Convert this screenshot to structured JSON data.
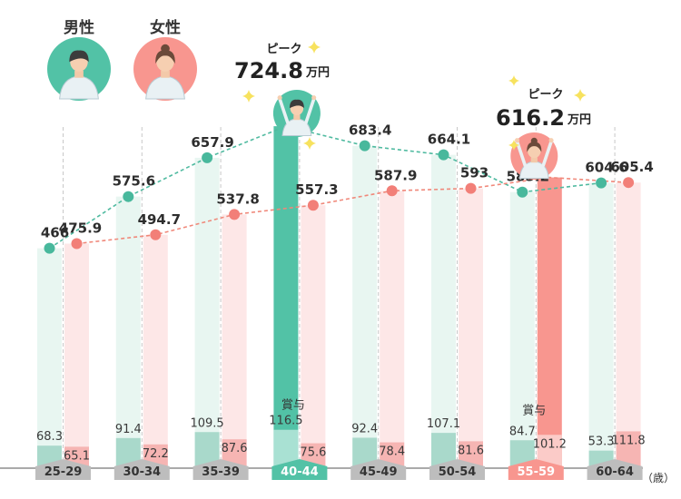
{
  "chart_data": {
    "type": "bar",
    "categories": [
      "25-29",
      "30-34",
      "35-39",
      "40-44",
      "45-49",
      "50-54",
      "55-59",
      "60-64"
    ],
    "series": [
      {
        "name": "男性",
        "values": [
          466,
          575.6,
          657.9,
          724.8,
          683.4,
          664.1,
          585.2,
          604.6
        ],
        "bonus": [
          68.3,
          91.4,
          109.5,
          116.5,
          92.4,
          107.1,
          84.7,
          53.3
        ]
      },
      {
        "name": "女性",
        "values": [
          475.9,
          494.7,
          537.8,
          557.3,
          587.9,
          593,
          616.2,
          605.4
        ],
        "bonus": [
          65.1,
          72.2,
          87.6,
          75.6,
          78.4,
          81.6,
          101.2,
          111.8
        ]
      }
    ],
    "value_labels_male": [
      "466",
      "575.6",
      "657.9",
      "",
      "683.4",
      "664.1",
      "585.2",
      "604.6"
    ],
    "value_labels_female": [
      "475.9",
      "494.7",
      "537.8",
      "557.3",
      "587.9",
      "593",
      "",
      "605.4"
    ],
    "bonus_labels_male": [
      "68.3",
      "91.4",
      "109.5",
      "116.5",
      "92.4",
      "107.1",
      "84.7",
      "53.3"
    ],
    "bonus_labels_female": [
      "65.1",
      "72.2",
      "87.6",
      "75.6",
      "78.4",
      "81.6",
      "101.2",
      "111.8"
    ],
    "peaks": [
      {
        "series": "男性",
        "category": "40-44",
        "word": "ピーク",
        "value": "724.8",
        "unit": "万円"
      },
      {
        "series": "女性",
        "category": "55-59",
        "word": "ピーク",
        "value": "616.2",
        "unit": "万円"
      }
    ],
    "bonus_word": "賞与",
    "x_unit": "（歳）",
    "legend": {
      "male": "男性",
      "female": "女性",
      "position": "top-left"
    },
    "ylim": [
      0,
      800
    ],
    "grid": "dashed vertical lines at categories",
    "highlight": {
      "male": "40-44",
      "female": "55-59"
    }
  },
  "colors": {
    "male_line": "#4fbaa0",
    "male_dot": "#48b89c",
    "male_bar_light": "#e8f6f1",
    "male_bonus": "#a9d9cb",
    "male_peak": "#52c2a6",
    "female_line": "#f0887a",
    "female_dot": "#f27f78",
    "female_bar_light": "#fde7e7",
    "female_bonus": "#f6b5b3",
    "female_peak": "#f8968f",
    "age_tag": "#bdbdbd",
    "star": "#f7e25e"
  },
  "icons": {
    "male": "man-avatar-icon",
    "female": "woman-avatar-icon",
    "star": "sparkle-icon"
  }
}
